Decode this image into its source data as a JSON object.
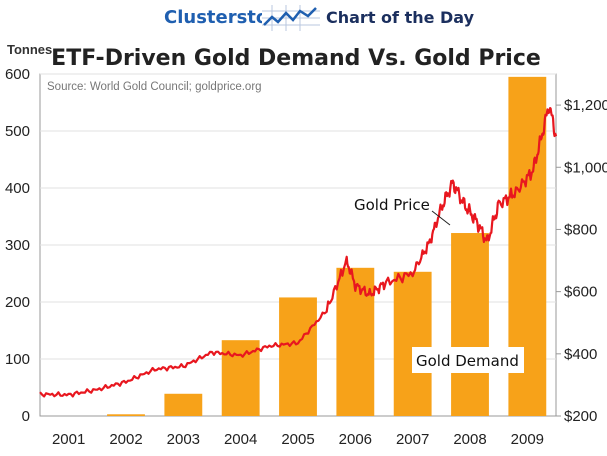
{
  "header": {
    "brand": "Clusterstock",
    "tagline": "Chart of the Day",
    "logo_icon": "rising-chart-icon"
  },
  "chart_data": {
    "type": "bar",
    "title": "ETF-Driven Gold Demand Vs. Gold Price",
    "source": "Source: World Gold Council; goldprice.org",
    "ylabel": "Tonnes",
    "ylim": [
      0,
      600
    ],
    "yticks": [
      0,
      100,
      200,
      300,
      400,
      500,
      600
    ],
    "y2lim": [
      200,
      1300
    ],
    "y2ticks": [
      200,
      400,
      600,
      800,
      1000,
      1200
    ],
    "y2tick_labels": [
      "$200",
      "$400",
      "$600",
      "$800",
      "$1,000",
      "$1,200"
    ],
    "categories": [
      "2001",
      "2002",
      "2003",
      "2004",
      "2005",
      "2006",
      "2007",
      "2008",
      "2009"
    ],
    "series": [
      {
        "name": "Gold Demand",
        "type": "bar",
        "color": "#f7a219",
        "values": [
          0,
          3,
          39,
          133,
          208,
          260,
          253,
          321,
          595
        ]
      },
      {
        "name": "Gold Price",
        "type": "line",
        "axis": "right",
        "color": "#e8171f",
        "x": [
          2001.0,
          2001.5,
          2002.0,
          2002.5,
          2003.0,
          2003.5,
          2004.0,
          2004.5,
          2005.0,
          2005.5,
          2006.0,
          2006.35,
          2006.5,
          2006.75,
          2007.0,
          2007.5,
          2007.8,
          2008.0,
          2008.2,
          2008.4,
          2008.6,
          2008.8,
          2009.0,
          2009.3,
          2009.6,
          2009.75,
          2009.88,
          2010.0
        ],
        "values": [
          270,
          268,
          285,
          310,
          350,
          360,
          405,
          395,
          425,
          435,
          540,
          700,
          620,
          590,
          625,
          660,
          760,
          870,
          950,
          880,
          830,
          760,
          880,
          920,
          990,
          1100,
          1200,
          1100
        ]
      }
    ],
    "annotations": [
      "Gold Price",
      "Gold Demand"
    ]
  }
}
